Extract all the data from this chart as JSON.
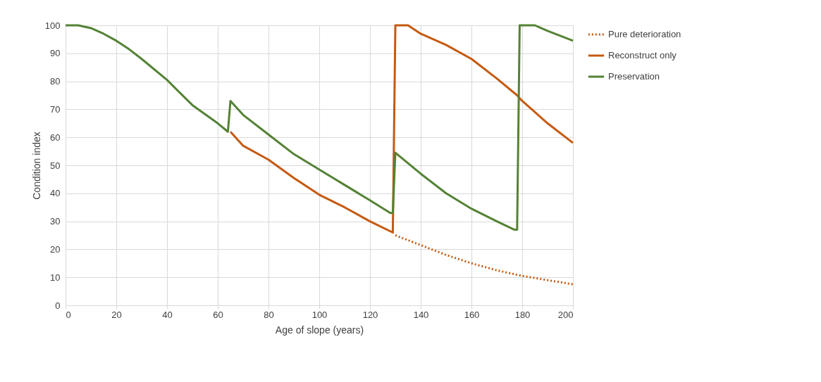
{
  "chart_data": {
    "type": "line",
    "xlabel": "Age of slope (years)",
    "ylabel": "Condition index",
    "xlim": [
      0,
      200
    ],
    "xticks": [
      0,
      20,
      40,
      60,
      80,
      100,
      120,
      140,
      160,
      180,
      200
    ],
    "ylim": [
      0,
      100
    ],
    "yticks": [
      0,
      10,
      20,
      30,
      40,
      50,
      60,
      70,
      80,
      90,
      100
    ],
    "grid": true,
    "legend": "right",
    "marker": "none",
    "series": [
      {
        "name": "Pure deterioration",
        "color": "#c55a11",
        "line_style": "dotted",
        "x": [
          130,
          140,
          150,
          160,
          170,
          180,
          190,
          200
        ],
        "values": [
          25,
          21.5,
          18,
          15,
          12.5,
          10.5,
          9,
          7.5
        ]
      },
      {
        "name": "Reconstruct only",
        "color": "#c55a11",
        "line_style": "solid",
        "x": [
          65,
          70,
          80,
          90,
          100,
          110,
          120,
          129,
          130,
          135,
          140,
          150,
          160,
          170,
          178,
          180,
          190,
          200
        ],
        "values": [
          62,
          57,
          52,
          45.5,
          39.5,
          35,
          30,
          26,
          100,
          100,
          97,
          93,
          88,
          81,
          75,
          73,
          65,
          58
        ]
      },
      {
        "name": "Preservation",
        "color": "#548235",
        "line_style": "solid",
        "x": [
          0,
          5,
          10,
          15,
          20,
          25,
          30,
          40,
          50,
          60,
          64,
          65,
          70,
          80,
          90,
          100,
          110,
          120,
          128,
          129,
          130,
          140,
          150,
          160,
          170,
          177,
          178,
          179,
          185,
          190,
          200
        ],
        "values": [
          100,
          100,
          99,
          97,
          94.5,
          91.5,
          88,
          80.5,
          71.5,
          65,
          62,
          73,
          68,
          61,
          54,
          48.5,
          43,
          37.5,
          33,
          33,
          54.5,
          47,
          40,
          34.5,
          30,
          27,
          27,
          100,
          100,
          98,
          94.5
        ]
      }
    ]
  }
}
